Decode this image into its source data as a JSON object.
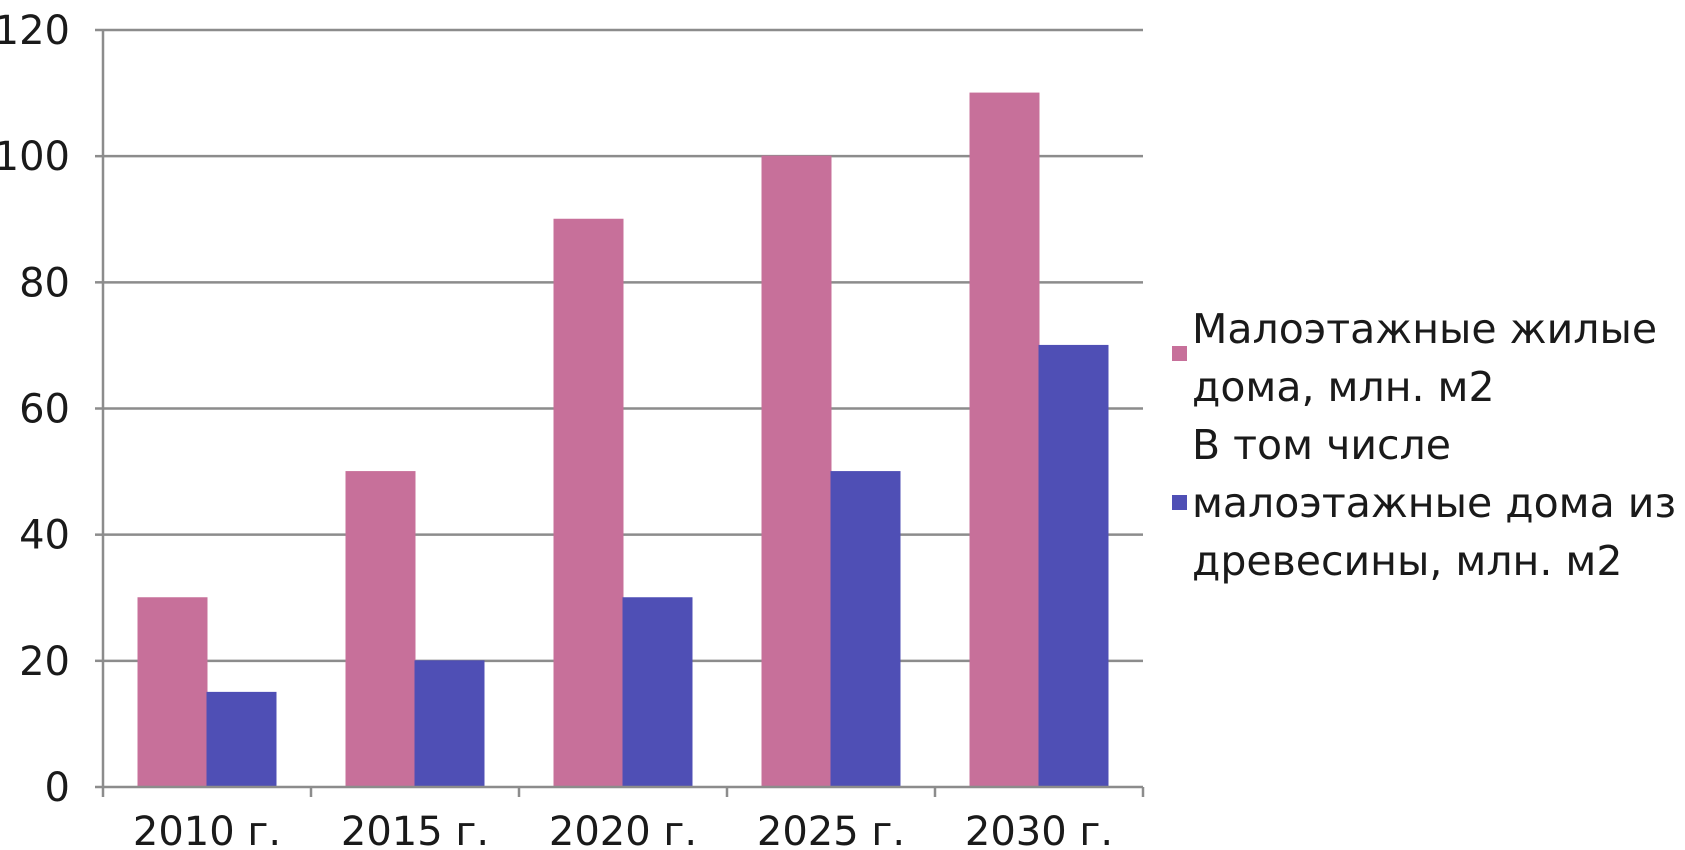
{
  "chart_data": {
    "type": "bar",
    "categories": [
      "2010 г.",
      "2015 г.",
      "2020 г.",
      "2025 г.",
      "2030 г."
    ],
    "series": [
      {
        "name": "Малоэтажные жилые\nдома, млн. м2",
        "values": [
          30,
          50,
          90,
          100,
          110
        ],
        "color": "#C7709A"
      },
      {
        "name": "В том числе\nмалоэтажные дома из\nдревесины, млн. м2",
        "values": [
          15,
          20,
          30,
          50,
          70
        ],
        "color": "#4F4FB5"
      }
    ],
    "ylim": [
      0,
      120
    ],
    "yticks": [
      "0",
      "20",
      "40",
      "60",
      "80",
      "100",
      "120"
    ],
    "grid": true,
    "legend_position": "right",
    "title": "",
    "xlabel": "",
    "ylabel": ""
  }
}
